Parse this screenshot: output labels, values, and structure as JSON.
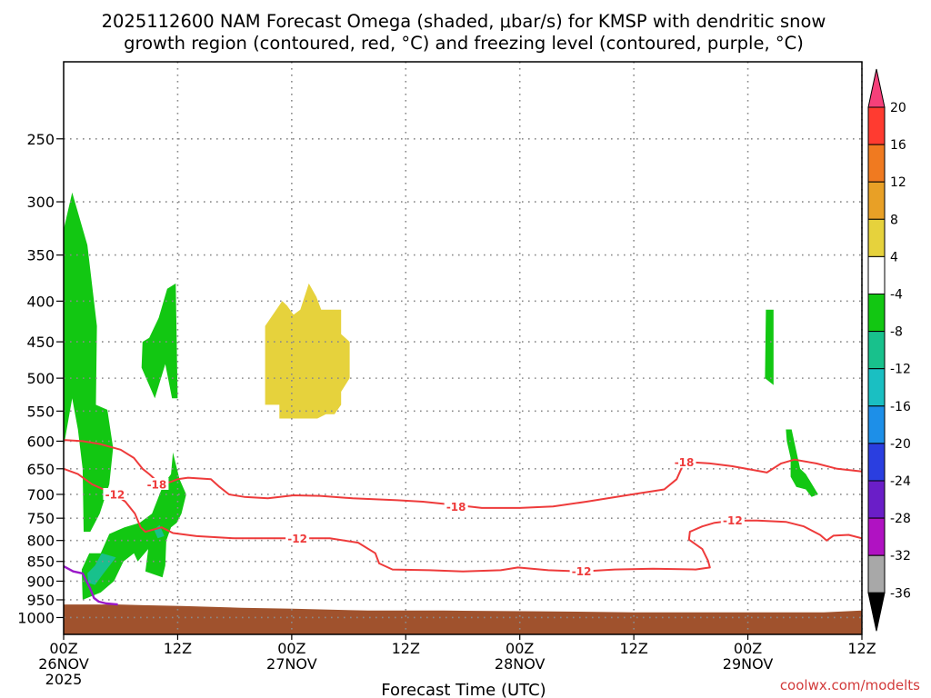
{
  "chart_data": {
    "type": "time-height contour",
    "title_line1": "2025112600 NAM Forecast Omega (shaded, μbar/s) for KMSP with dendritic snow",
    "title_line2": "growth region (contoured, red, °C) and freezing level (contoured, purple, °C)",
    "xlabel": "Forecast Time (UTC)",
    "credit": "coolwx.com/modelts",
    "x_ticks": [
      {
        "hour": 0,
        "label": "00Z",
        "sub": "26NOV",
        "sub2": "2025"
      },
      {
        "hour": 12,
        "label": "12Z",
        "sub": "",
        "sub2": ""
      },
      {
        "hour": 24,
        "label": "00Z",
        "sub": "27NOV",
        "sub2": ""
      },
      {
        "hour": 36,
        "label": "12Z",
        "sub": "",
        "sub2": ""
      },
      {
        "hour": 48,
        "label": "00Z",
        "sub": "28NOV",
        "sub2": ""
      },
      {
        "hour": 60,
        "label": "12Z",
        "sub": "",
        "sub2": ""
      },
      {
        "hour": 72,
        "label": "00Z",
        "sub": "29NOV",
        "sub2": ""
      },
      {
        "hour": 84,
        "label": "12Z",
        "sub": "",
        "sub2": ""
      }
    ],
    "x_range_hours": [
      0,
      84
    ],
    "y_ticks": [
      250,
      300,
      350,
      400,
      450,
      500,
      550,
      600,
      650,
      700,
      750,
      800,
      850,
      900,
      950,
      1000
    ],
    "y_range_mb": [
      1050,
      200
    ],
    "y_scale": "log-pressure",
    "grid": "dotted",
    "colorbar": {
      "labels": [
        "20",
        "16",
        "12",
        "8",
        "4",
        "-4",
        "-8",
        "-12",
        "-16",
        "-20",
        "-24",
        "-28",
        "-32",
        "-36"
      ],
      "colors": [
        "#f5407a",
        "#ff3b30",
        "#f07a20",
        "#e8a026",
        "#e6d23c",
        "#ffffff",
        "#12c712",
        "#18c18c",
        "#1abfc2",
        "#1d8fe8",
        "#2a3ee0",
        "#6a1ec8",
        "#b012c2",
        "#a8a8a8",
        "#000000"
      ]
    },
    "omega_shading": [
      {
        "value_range": "-8 to -4",
        "color": "#12c712",
        "regions": [
          {
            "points": [
              [
                0,
                325
              ],
              [
                0.9,
                292
              ],
              [
                2.5,
                340
              ],
              [
                3.5,
                430
              ],
              [
                3.4,
                540
              ],
              [
                4.6,
                548
              ],
              [
                5.2,
                612
              ],
              [
                4.8,
                680
              ],
              [
                3.8,
                740
              ],
              [
                2.8,
                780
              ],
              [
                2.1,
                780
              ],
              [
                2,
                650
              ],
              [
                1.5,
                580
              ],
              [
                0.9,
                530
              ],
              [
                0,
                610
              ]
            ]
          },
          {
            "points": [
              [
                8.3,
                450
              ],
              [
                9,
                445
              ],
              [
                10,
                420
              ],
              [
                10.9,
                386
              ],
              [
                11.8,
                380
              ],
              [
                12,
                530
              ],
              [
                11.4,
                530
              ],
              [
                10.7,
                480
              ],
              [
                9.6,
                530
              ],
              [
                8.2,
                485
              ]
            ]
          },
          {
            "points": [
              [
                11.3,
                660
              ],
              [
                11.5,
                620
              ],
              [
                12.2,
                670
              ],
              [
                12.9,
                700
              ],
              [
                12.4,
                740
              ],
              [
                11.9,
                760
              ],
              [
                11.3,
                770
              ],
              [
                10.8,
                800
              ],
              [
                10.7,
                860
              ],
              [
                10.4,
                890
              ],
              [
                8.6,
                875
              ],
              [
                8.9,
                820
              ],
              [
                7.8,
                850
              ],
              [
                7.4,
                830
              ],
              [
                6.3,
                850
              ],
              [
                5.3,
                900
              ],
              [
                3.9,
                930
              ],
              [
                2,
                950
              ],
              [
                1.9,
                870
              ],
              [
                2.7,
                830
              ],
              [
                3.9,
                830
              ],
              [
                4.8,
                785
              ],
              [
                6.4,
                770
              ],
              [
                8,
                760
              ],
              [
                9.3,
                740
              ],
              [
                10.5,
                680
              ]
            ]
          },
          {
            "points": [
              [
                73.9,
                410
              ],
              [
                74.7,
                410
              ],
              [
                74.7,
                510
              ],
              [
                73.8,
                500
              ]
            ]
          },
          {
            "points": [
              [
                76,
                580
              ],
              [
                76.6,
                580
              ],
              [
                77.5,
                650
              ],
              [
                78.1,
                660
              ],
              [
                79.4,
                700
              ],
              [
                78.7,
                705
              ],
              [
                78.1,
                690
              ],
              [
                77.1,
                685
              ],
              [
                76.5,
                665
              ],
              [
                76.5,
                630
              ],
              [
                76.1,
                600
              ]
            ]
          }
        ]
      },
      {
        "value_range": "-12 to -8",
        "color": "#18c18c",
        "regions": [
          {
            "points": [
              [
                2.5,
                880
              ],
              [
                3.3,
                860
              ],
              [
                4,
                830
              ],
              [
                5.5,
                840
              ],
              [
                4.2,
                880
              ],
              [
                3.3,
                910
              ],
              [
                2.6,
                905
              ]
            ]
          },
          {
            "points": [
              [
                9.5,
                775
              ],
              [
                10.1,
                765
              ],
              [
                10.6,
                790
              ],
              [
                9.9,
                795
              ]
            ]
          }
        ]
      },
      {
        "value_range": "4 to 8",
        "color": "#e6d23c",
        "regions": [
          {
            "points": [
              [
                21.2,
                430
              ],
              [
                23,
                400
              ],
              [
                23.5,
                405
              ],
              [
                24.2,
                416
              ],
              [
                24.9,
                410
              ],
              [
                25.8,
                380
              ],
              [
                26.6,
                395
              ],
              [
                27.1,
                410
              ],
              [
                29.2,
                410
              ],
              [
                29.2,
                440
              ],
              [
                30.1,
                450
              ],
              [
                30.1,
                500
              ],
              [
                29.2,
                520
              ],
              [
                29.2,
                540
              ],
              [
                28.5,
                555
              ],
              [
                27.6,
                555
              ],
              [
                26.7,
                562
              ],
              [
                22.7,
                562
              ],
              [
                22.7,
                540
              ],
              [
                21.2,
                540
              ]
            ]
          }
        ]
      }
    ],
    "isotherms_dgz": [
      {
        "label": "-18",
        "label_at": [
          [
            9.8,
            680
          ],
          [
            41.3,
            725
          ],
          [
            65.3,
            638
          ]
        ],
        "points": [
          [
            0,
            598
          ],
          [
            2,
            600
          ],
          [
            3.8,
            605
          ],
          [
            6,
            615
          ],
          [
            7.4,
            630
          ],
          [
            8.3,
            650
          ],
          [
            9,
            660
          ],
          [
            10.2,
            680
          ],
          [
            11.3,
            675
          ],
          [
            12,
            670
          ],
          [
            13.1,
            667
          ],
          [
            15.5,
            670
          ],
          [
            16.4,
            685
          ],
          [
            17.4,
            700
          ],
          [
            19,
            705
          ],
          [
            21.5,
            708
          ],
          [
            24.2,
            702
          ],
          [
            27,
            703
          ],
          [
            30.4,
            708
          ],
          [
            35.1,
            712
          ],
          [
            37.8,
            715
          ],
          [
            41.3,
            722
          ],
          [
            44,
            728
          ],
          [
            48,
            728
          ],
          [
            51.5,
            725
          ],
          [
            55,
            715
          ],
          [
            59.8,
            700
          ],
          [
            63.2,
            690
          ],
          [
            64.5,
            670
          ],
          [
            65.3,
            638
          ],
          [
            66.3,
            638
          ],
          [
            68,
            640
          ],
          [
            70.3,
            645
          ],
          [
            72.5,
            652
          ],
          [
            74,
            657
          ],
          [
            75.5,
            640
          ],
          [
            76.9,
            633
          ],
          [
            79.2,
            640
          ],
          [
            81.4,
            650
          ],
          [
            84,
            655
          ]
        ]
      },
      {
        "label": "-12",
        "label_at": [
          [
            5.4,
            700
          ],
          [
            24.6,
            795
          ],
          [
            54.5,
            875
          ],
          [
            70.4,
            755
          ]
        ],
        "points": [
          [
            0,
            650
          ],
          [
            1.5,
            660
          ],
          [
            3,
            680
          ],
          [
            5.4,
            700
          ],
          [
            6.5,
            715
          ],
          [
            7.5,
            740
          ],
          [
            8.1,
            770
          ],
          [
            8.6,
            780
          ],
          [
            10.3,
            770
          ],
          [
            11.5,
            783
          ],
          [
            14,
            790
          ],
          [
            18,
            795
          ],
          [
            22,
            795
          ],
          [
            24.6,
            795
          ],
          [
            28,
            795
          ],
          [
            31,
            805
          ],
          [
            32.8,
            830
          ],
          [
            33.2,
            855
          ],
          [
            34.6,
            870
          ],
          [
            38.5,
            872
          ],
          [
            42,
            875
          ],
          [
            46,
            872
          ],
          [
            47.8,
            865
          ],
          [
            51,
            872
          ],
          [
            54.5,
            875
          ],
          [
            58,
            870
          ],
          [
            62,
            868
          ],
          [
            66.5,
            870
          ],
          [
            68,
            865
          ],
          [
            67.8,
            848
          ],
          [
            67.2,
            820
          ],
          [
            65.8,
            798
          ],
          [
            65.9,
            780
          ],
          [
            67.2,
            768
          ],
          [
            68.5,
            760
          ],
          [
            70.4,
            755
          ],
          [
            73,
            755
          ],
          [
            76,
            758
          ],
          [
            77.9,
            768
          ],
          [
            79.6,
            787
          ],
          [
            80.3,
            800
          ],
          [
            81,
            789
          ],
          [
            82.6,
            787
          ],
          [
            84,
            795
          ]
        ]
      }
    ],
    "freezing_level": {
      "color": "#9a18c8",
      "points": [
        [
          0,
          862
        ],
        [
          1,
          875
        ],
        [
          2,
          880
        ],
        [
          2.8,
          920
        ],
        [
          3.2,
          945
        ],
        [
          3.7,
          955
        ],
        [
          4.5,
          960
        ],
        [
          5.7,
          963
        ]
      ]
    },
    "terrain_surface": {
      "color": "#a0522d",
      "points": [
        [
          0,
          963
        ],
        [
          5.8,
          963
        ],
        [
          8.4,
          965
        ],
        [
          12.4,
          967
        ],
        [
          18.7,
          972
        ],
        [
          24.1,
          975
        ],
        [
          32,
          980
        ],
        [
          40,
          980
        ],
        [
          50,
          982
        ],
        [
          60,
          985
        ],
        [
          70,
          985
        ],
        [
          80,
          985
        ],
        [
          84,
          980
        ]
      ]
    }
  }
}
